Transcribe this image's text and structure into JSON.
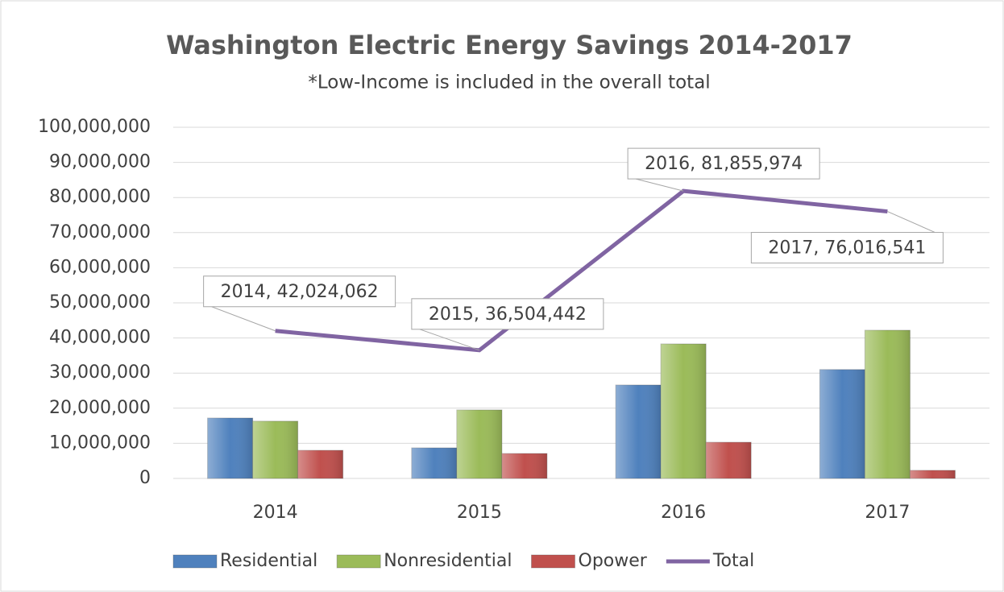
{
  "chart_data": {
    "type": "bar",
    "title": "Washington Electric Energy Savings 2014-2017",
    "subtitle": "*Low-Income is included in the overall total",
    "categories": [
      "2014",
      "2015",
      "2016",
      "2017"
    ],
    "series": [
      {
        "name": "Residential",
        "color": "#4f81bd",
        "values": [
          17200000,
          8700000,
          26600000,
          31000000
        ]
      },
      {
        "name": "Nonresidential",
        "color": "#9bbb59",
        "values": [
          16300000,
          19500000,
          38300000,
          42200000
        ]
      },
      {
        "name": "Opower",
        "color": "#c0504d",
        "values": [
          8000000,
          7100000,
          10300000,
          2300000
        ]
      },
      {
        "name": "Total",
        "type": "line",
        "color": "#8064a2",
        "values": [
          42024062,
          36504442,
          81855974,
          76016541
        ],
        "value_labels": [
          "2014, 42,024,062",
          "2015, 36,504,442",
          "2016, 81,855,974",
          "2017, 76,016,541"
        ]
      }
    ],
    "ylim": [
      0,
      100000000
    ],
    "yticks": [
      0,
      {
        "value": 10000000,
        "label": "10,000,000"
      },
      {
        "value": 20000000,
        "label": "20,000,000"
      },
      {
        "value": 30000000,
        "label": "30,000,000"
      },
      {
        "value": 40000000,
        "label": "40,000,000"
      },
      {
        "value": 50000000,
        "label": "50,000,000"
      },
      {
        "value": 60000000,
        "label": "60,000,000"
      },
      {
        "value": 70000000,
        "label": "70,000,000"
      },
      {
        "value": 80000000,
        "label": "80,000,000"
      },
      {
        "value": 90000000,
        "label": "90,000,000"
      },
      {
        "value": 100000000,
        "label": "100,000,000"
      }
    ],
    "grid": true,
    "legend": "bottom"
  }
}
